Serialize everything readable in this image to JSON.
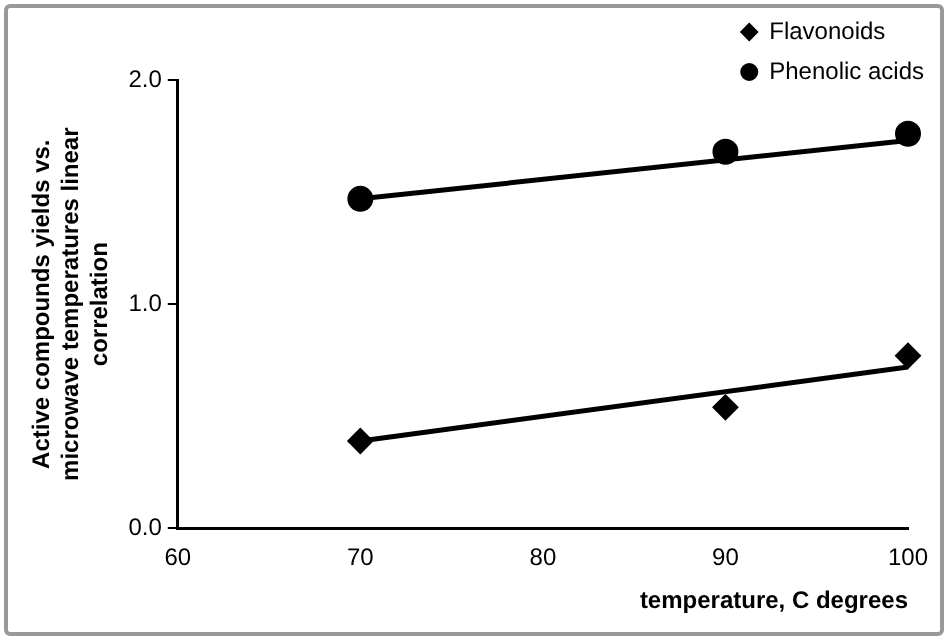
{
  "chart_data": {
    "type": "scatter",
    "xlabel": "temperature, C degrees",
    "ylabel": "Active compounds yields vs. microwave temperatures linear correlation",
    "xlim": [
      60,
      100
    ],
    "xticks": [
      60,
      70,
      80,
      90,
      100
    ],
    "ylim": [
      0,
      2
    ],
    "yticks": [
      {
        "value": 0,
        "label": "0.0"
      },
      {
        "value": 1,
        "label": "1.0"
      },
      {
        "value": 2,
        "label": "2.0"
      }
    ],
    "grid": false,
    "legend": "top right",
    "series": [
      {
        "name": "Flavonoids",
        "color": "#000000",
        "marker": "diamond",
        "x": [
          70,
          90,
          100
        ],
        "values": [
          0.39,
          0.54,
          0.77
        ]
      },
      {
        "name": "Phenolic acids",
        "color": "#000000",
        "marker": "circle",
        "x": [
          70,
          90,
          100
        ],
        "values": [
          1.47,
          1.68,
          1.76
        ]
      },
      {
        "type": "line",
        "color": "#000000",
        "marker": "none",
        "x": [
          70,
          100
        ],
        "values": [
          0.39,
          0.72
        ]
      },
      {
        "type": "line",
        "color": "#000000",
        "marker": "none",
        "x": [
          70,
          100
        ],
        "values": [
          1.47,
          1.73
        ]
      }
    ]
  }
}
